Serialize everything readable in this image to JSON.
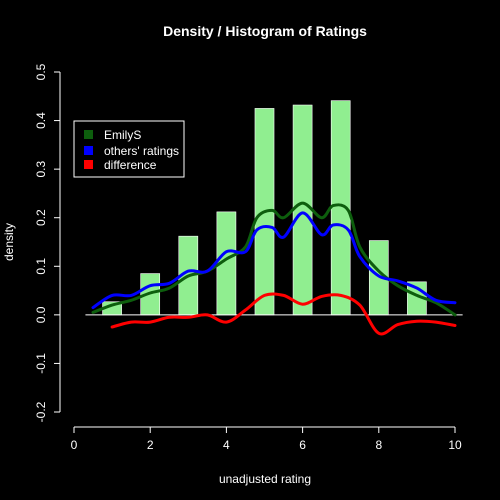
{
  "chart_data": {
    "type": "bar",
    "title": "Density / Histogram of Ratings",
    "xlabel": "unadjusted rating",
    "ylabel": "density",
    "xlim": [
      0,
      10
    ],
    "ylim": [
      -0.2,
      0.5
    ],
    "x_ticks": [
      0,
      2,
      4,
      6,
      8,
      10
    ],
    "x_tick_labels": [
      "0",
      "2",
      "4",
      "6",
      "8",
      "10"
    ],
    "y_ticks": [
      -0.2,
      -0.1,
      0.0,
      0.1,
      0.2,
      0.3,
      0.4,
      0.5
    ],
    "y_tick_labels": [
      "-0.2",
      "-0.1",
      "0.0",
      "0.1",
      "0.2",
      "0.3",
      "0.4",
      "0.5"
    ],
    "zero_line": true,
    "grid": false,
    "histogram": {
      "color": "#90ee90",
      "bin_width": 0.5,
      "bins_x": [
        1,
        2,
        3,
        4,
        5,
        6,
        7,
        8,
        9
      ],
      "values": [
        0.027,
        0.085,
        0.162,
        0.212,
        0.425,
        0.432,
        0.441,
        0.153,
        0.068
      ]
    },
    "series": [
      {
        "name": "EmilyS",
        "color": "#0d5e0d",
        "x": [
          0.5,
          1.0,
          1.5,
          2.0,
          2.5,
          3.0,
          3.5,
          4.0,
          4.5,
          4.8,
          5.2,
          5.5,
          6.0,
          6.5,
          6.8,
          7.2,
          7.5,
          8.0,
          8.5,
          9.0,
          9.5,
          10.0
        ],
        "y": [
          0.005,
          0.02,
          0.03,
          0.045,
          0.055,
          0.08,
          0.09,
          0.115,
          0.14,
          0.2,
          0.215,
          0.2,
          0.23,
          0.2,
          0.225,
          0.215,
          0.14,
          0.09,
          0.06,
          0.04,
          0.025,
          0.0
        ]
      },
      {
        "name": "others' ratings",
        "color": "#0000ff",
        "x": [
          0.5,
          1.0,
          1.5,
          2.0,
          2.5,
          3.0,
          3.5,
          4.0,
          4.5,
          4.8,
          5.2,
          5.5,
          6.0,
          6.5,
          6.8,
          7.2,
          7.5,
          8.0,
          8.5,
          9.0,
          9.5,
          10.0
        ],
        "y": [
          0.015,
          0.04,
          0.04,
          0.06,
          0.065,
          0.09,
          0.09,
          0.13,
          0.13,
          0.175,
          0.18,
          0.16,
          0.21,
          0.165,
          0.185,
          0.175,
          0.12,
          0.08,
          0.07,
          0.055,
          0.03,
          0.025
        ]
      },
      {
        "name": "difference",
        "color": "#ff0000",
        "x": [
          1.0,
          1.5,
          2.0,
          2.5,
          3.0,
          3.5,
          4.0,
          4.5,
          5.0,
          5.5,
          6.0,
          6.5,
          7.0,
          7.5,
          8.0,
          8.5,
          9.0,
          9.5,
          10.0
        ],
        "y": [
          -0.025,
          -0.015,
          -0.015,
          -0.005,
          -0.005,
          0.0,
          -0.015,
          0.01,
          0.04,
          0.04,
          0.022,
          0.038,
          0.04,
          0.02,
          -0.038,
          -0.02,
          -0.013,
          -0.015,
          -0.022
        ]
      }
    ],
    "legend": {
      "position": "top-left",
      "entries": [
        "EmilyS",
        "others' ratings",
        "difference"
      ]
    }
  }
}
